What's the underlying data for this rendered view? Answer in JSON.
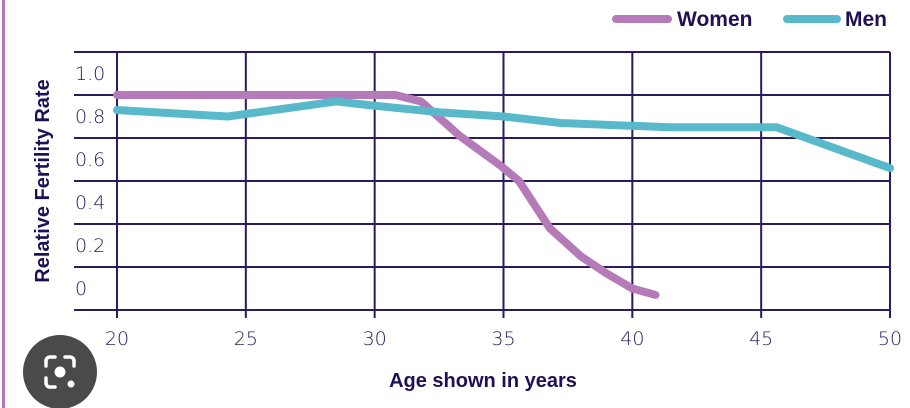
{
  "chart_data": {
    "type": "line",
    "title": "",
    "xlabel": "Age shown in years",
    "ylabel": "Relative Fertility Rate",
    "xlim": [
      20,
      50
    ],
    "ylim": [
      0,
      1.2
    ],
    "xticks": [
      20,
      25,
      30,
      35,
      40,
      45,
      50
    ],
    "xtick_labels": [
      "20",
      "25",
      "30",
      "35",
      "40",
      "45",
      "50"
    ],
    "yticks": [
      0,
      0.2,
      0.4,
      0.6,
      0.8,
      1.0
    ],
    "ytick_labels": [
      "0",
      "0.2",
      "0.4",
      "0.6",
      "0.8",
      "1.0"
    ],
    "grid": true,
    "legend_position": "top-right",
    "series": [
      {
        "name": "Women",
        "color": "#b57bb8",
        "x": [
          20,
          30,
          30.8,
          31.8,
          33.3,
          34.9,
          35.6,
          36.8,
          38,
          39,
          40,
          40.9
        ],
        "y": [
          1.0,
          1.0,
          1.0,
          0.97,
          0.81,
          0.67,
          0.6,
          0.38,
          0.25,
          0.17,
          0.1,
          0.07
        ]
      },
      {
        "name": "Men",
        "color": "#57b9ca",
        "x": [
          20,
          24.3,
          28.5,
          30,
          32.5,
          35,
          37.2,
          41.4,
          45.6,
          50
        ],
        "y": [
          0.93,
          0.9,
          0.97,
          0.95,
          0.92,
          0.9,
          0.87,
          0.85,
          0.85,
          0.66
        ]
      }
    ]
  },
  "colors": {
    "grid": "#2a1a5e",
    "text": "#1f0f55"
  },
  "overlay": {
    "icon": "google-lens-icon"
  }
}
